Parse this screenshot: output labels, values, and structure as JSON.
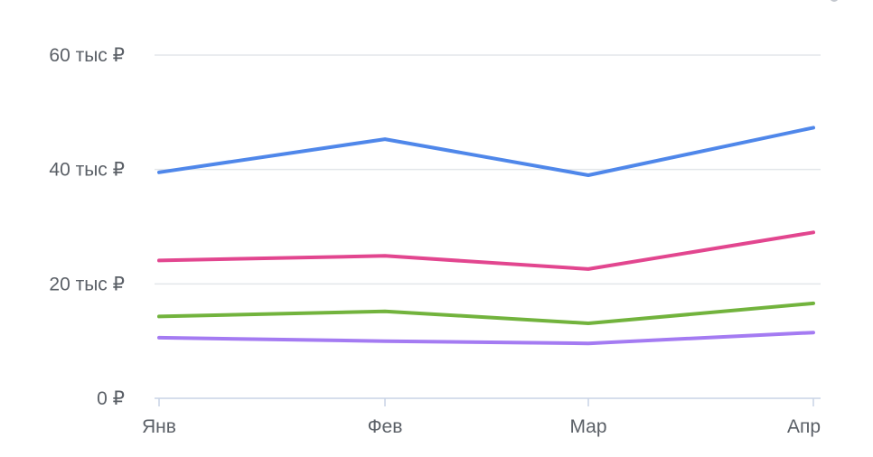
{
  "chart_data": {
    "type": "line",
    "categories": [
      "Янв",
      "Фев",
      "Мар",
      "Апр"
    ],
    "ylim": [
      0,
      60000
    ],
    "y_ticks": [
      {
        "value": 0,
        "label": "0 ₽"
      },
      {
        "value": 20000,
        "label": "20 тыс ₽"
      },
      {
        "value": 40000,
        "label": "40 тыс ₽"
      },
      {
        "value": 60000,
        "label": "60 тыс ₽"
      }
    ],
    "grid": true,
    "series": [
      {
        "color": "#4f87ea",
        "values": [
          39500,
          45300,
          39000,
          47300
        ]
      },
      {
        "color": "#e2468f",
        "values": [
          24100,
          24900,
          22600,
          29000
        ]
      },
      {
        "color": "#72b33d",
        "values": [
          14300,
          15200,
          13100,
          16600
        ]
      },
      {
        "color": "#a47bf2",
        "values": [
          10600,
          10000,
          9600,
          11500
        ]
      }
    ]
  },
  "toolbar": {
    "icon": "menu-icon",
    "icon_color": "#c3c7ce"
  }
}
